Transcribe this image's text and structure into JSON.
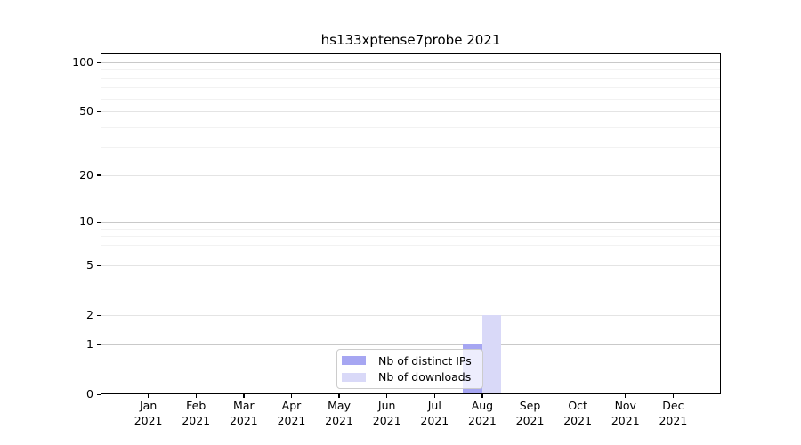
{
  "chart_data": {
    "type": "bar",
    "title": "hs133xptense7probe 2021",
    "categories": [
      "Jan 2021",
      "Feb 2021",
      "Mar 2021",
      "Apr 2021",
      "May 2021",
      "Jun 2021",
      "Jul 2021",
      "Aug 2021",
      "Sep 2021",
      "Oct 2021",
      "Nov 2021",
      "Dec 2021"
    ],
    "series": [
      {
        "name": "Nb of distinct IPs",
        "color": "#a6a6f2",
        "values": [
          0,
          0,
          0,
          0,
          0,
          0,
          0,
          1,
          0,
          0,
          0,
          0
        ]
      },
      {
        "name": "Nb of downloads",
        "color": "#d9d9f8",
        "values": [
          0,
          0,
          0,
          0,
          0,
          0,
          0,
          2,
          0,
          0,
          0,
          0
        ]
      }
    ],
    "xlabel": "",
    "ylabel": "",
    "yscale": "log1p",
    "ylim": [
      0,
      113
    ],
    "y_major_ticks": [
      0,
      1,
      2,
      5,
      10,
      20,
      50,
      100
    ],
    "y_decade_lines": [
      1,
      10,
      100
    ],
    "y_minor_lines": [
      3,
      4,
      6,
      7,
      8,
      9,
      30,
      40,
      60,
      70,
      80,
      90
    ],
    "grid": "on",
    "legend_position": "lower center",
    "colors": {
      "background": "#ffffff",
      "axis": "#000000",
      "grid_decade": "#c9c9c9",
      "grid_major": "#e4e4e4",
      "grid_minor": "#f2f2f2",
      "legend_border": "#cccccc"
    }
  }
}
